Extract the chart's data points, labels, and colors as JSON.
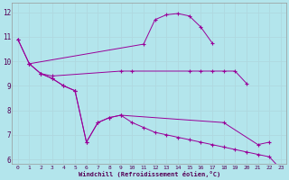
{
  "xlabel": "Windchill (Refroidissement éolien,°C)",
  "background_color": "#b3e5ec",
  "grid_color": "#c8e8ef",
  "line_color": "#990099",
  "series": [
    {
      "x": [
        0,
        1,
        11,
        12,
        13,
        14,
        15,
        16,
        17
      ],
      "y": [
        10.9,
        9.9,
        10.7,
        11.7,
        11.9,
        11.95,
        11.85,
        11.4,
        10.75
      ]
    },
    {
      "x": [
        1,
        2,
        3,
        9,
        10,
        15,
        16,
        17,
        18,
        19,
        20
      ],
      "y": [
        9.9,
        9.5,
        9.4,
        9.6,
        9.6,
        9.6,
        9.6,
        9.6,
        9.6,
        9.6,
        9.1
      ]
    },
    {
      "x": [
        2,
        3,
        4,
        5
      ],
      "y": [
        9.5,
        9.3,
        9.0,
        8.8
      ]
    },
    {
      "x": [
        5,
        6,
        7,
        8,
        9,
        18,
        21,
        22
      ],
      "y": [
        8.8,
        6.7,
        7.5,
        7.7,
        7.8,
        7.5,
        6.6,
        6.7
      ]
    },
    {
      "x": [
        0,
        1,
        2,
        3,
        4,
        5,
        6,
        7,
        8,
        9,
        10,
        11,
        12,
        13,
        14,
        15,
        16,
        17,
        18,
        19,
        20,
        21,
        22,
        23
      ],
      "y": [
        10.9,
        9.9,
        9.5,
        9.3,
        9.0,
        8.8,
        6.7,
        7.5,
        7.7,
        7.8,
        7.5,
        7.3,
        7.1,
        7.0,
        6.9,
        6.8,
        6.7,
        6.6,
        6.5,
        6.4,
        6.3,
        6.2,
        6.1,
        5.6
      ]
    }
  ],
  "ylim": [
    5.8,
    12.4
  ],
  "yticks": [
    6,
    7,
    8,
    9,
    10,
    11,
    12
  ],
  "xticks": [
    0,
    1,
    2,
    3,
    4,
    5,
    6,
    7,
    8,
    9,
    10,
    11,
    12,
    13,
    14,
    15,
    16,
    17,
    18,
    19,
    20,
    21,
    22,
    23
  ],
  "figsize": [
    3.2,
    2.0
  ],
  "dpi": 100
}
